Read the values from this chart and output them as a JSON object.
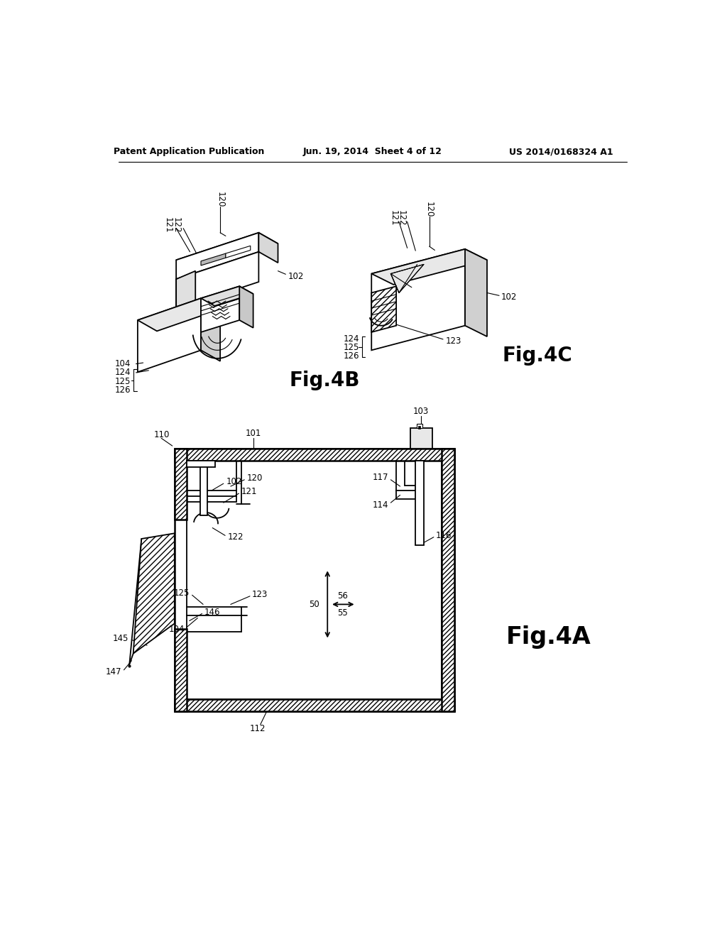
{
  "bg_color": "#ffffff",
  "header_left": "Patent Application Publication",
  "header_center": "Jun. 19, 2014  Sheet 4 of 12",
  "header_right": "US 2014/0168324 A1",
  "fig4b_label": "Fig.4B",
  "fig4c_label": "Fig.4C",
  "fig4a_label": "Fig.4A"
}
